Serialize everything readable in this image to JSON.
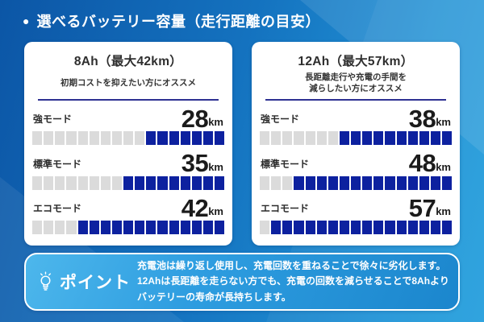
{
  "header": {
    "bullet": "●",
    "title": "選べるバッテリー容量（走行距離の目安）"
  },
  "cards": [
    {
      "title": "8Ah（最大42km）",
      "subtitle_lines": [
        "初期コストを抑えたい方にオススメ"
      ],
      "modes": [
        {
          "label": "強モード",
          "value": "28",
          "unit": "km",
          "total_segments": 17,
          "filled_segments": 7
        },
        {
          "label": "標準モード",
          "value": "35",
          "unit": "km",
          "total_segments": 17,
          "filled_segments": 9
        },
        {
          "label": "エコモード",
          "value": "42",
          "unit": "km",
          "total_segments": 17,
          "filled_segments": 13
        }
      ]
    },
    {
      "title": "12Ah（最大57km）",
      "subtitle_lines": [
        "長距離走行や充電の手間を",
        "減らしたい方にオススメ"
      ],
      "modes": [
        {
          "label": "強モード",
          "value": "38",
          "unit": "km",
          "total_segments": 17,
          "filled_segments": 10
        },
        {
          "label": "標準モード",
          "value": "48",
          "unit": "km",
          "total_segments": 17,
          "filled_segments": 14
        },
        {
          "label": "エコモード",
          "value": "57",
          "unit": "km",
          "total_segments": 17,
          "filled_segments": 16
        }
      ]
    }
  ],
  "point": {
    "icon": "lightbulb-icon",
    "label": "ポイント",
    "lines": [
      "充電池は繰り返し使用し、充電回数を重ねることで徐々に劣化します。",
      "12Ahは長距離を走らない方でも、充電の回数を減らせることで8Ahより",
      "バッテリーの寿命が長持ちします。"
    ]
  },
  "colors": {
    "background_top": "#0c56a6",
    "background_bottom": "#25a0de",
    "card_bg": "#ffffff",
    "divider_navy": "#2e3192",
    "segment_filled": "#0d219f",
    "segment_empty": "#dbdbdb",
    "point_panel_blue": "#2e9de0",
    "text_dark": "#2b2b2b",
    "text_white": "#ffffff"
  },
  "chart_data": {
    "type": "bar",
    "title": "選べるバッテリー容量（走行距離の目安）",
    "categories": [
      "強モード",
      "標準モード",
      "エコモード"
    ],
    "series": [
      {
        "name": "8Ah（最大42km）",
        "values": [
          28,
          35,
          42
        ]
      },
      {
        "name": "12Ah（最大57km）",
        "values": [
          38,
          48,
          57
        ]
      }
    ],
    "unit": "km",
    "gauge_total_segments": 17,
    "gauge_filled_segments": {
      "8Ah": [
        7,
        9,
        13
      ],
      "12Ah": [
        10,
        14,
        16
      ]
    },
    "annotations": [
      "初期コストを抑えたい方にオススメ",
      "長距離走行や充電の手間を減らしたい方にオススメ",
      "充電池は繰り返し使用し、充電回数を重ねることで徐々に劣化します。12Ahは長距離を走らない方でも、充電の回数を減らせることで8Ahよりバッテリーの寿命が長持ちします。"
    ],
    "layout": {
      "gauge_anchor": "right",
      "legend_position": "card-titles",
      "grid": false
    }
  }
}
